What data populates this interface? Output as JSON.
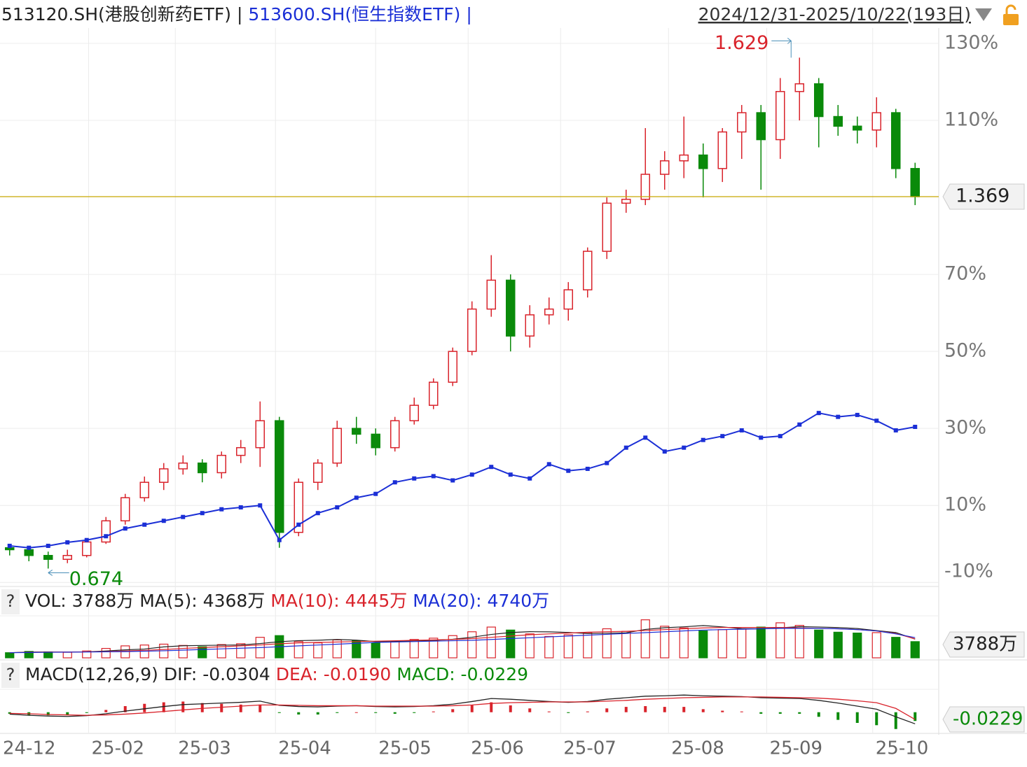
{
  "chart_data": [
    {
      "type": "candlestick",
      "range_label": "2024/12/31-2025/10/22(193日)",
      "separator": "|",
      "price_label": "1.369",
      "xlim": [
        0,
        48
      ],
      "xticks": [
        {
          "value": 0,
          "label": "24-12"
        },
        {
          "value": 4.6,
          "label": "25-02"
        },
        {
          "value": 9.1,
          "label": "25-03"
        },
        {
          "value": 14.3,
          "label": "25-04"
        },
        {
          "value": 19.5,
          "label": "25-05"
        },
        {
          "value": 24.3,
          "label": "25-06"
        },
        {
          "value": 29.1,
          "label": "25-07"
        },
        {
          "value": 34.7,
          "label": "25-08"
        },
        {
          "value": 39.8,
          "label": "25-09"
        },
        {
          "value": 45.3,
          "label": "25-10"
        }
      ],
      "ylim": [
        -10.5,
        134
      ],
      "yticks": [
        {
          "value": -10,
          "label": "-10%"
        },
        {
          "value": 10,
          "label": "10%"
        },
        {
          "value": 30,
          "label": "30%"
        },
        {
          "value": 50,
          "label": "50%"
        },
        {
          "value": 70,
          "label": "70%"
        },
        {
          "value": 110,
          "label": "110%"
        },
        {
          "value": 130,
          "label": "130%"
        }
      ],
      "grid": true,
      "high_label": "1.629",
      "low_label": "0.674",
      "series": [
        {
          "name": "513120.SH(港股创新药ETF)",
          "color": "#222222",
          "up_color": "#d9232b",
          "down_color": "#0a8a0a",
          "ohlc": [
            [
              -1,
              0,
              -3,
              -1.5
            ],
            [
              -1.5,
              -1,
              -4.5,
              -3
            ],
            [
              -3,
              -2,
              -6.4,
              -4
            ],
            [
              -4,
              -1.5,
              -5,
              -3
            ],
            [
              -3,
              1.5,
              -3.5,
              0.5
            ],
            [
              0.5,
              7,
              0,
              6
            ],
            [
              6,
              13,
              5,
              12
            ],
            [
              12,
              17.5,
              11,
              16
            ],
            [
              16,
              21,
              14,
              19.5
            ],
            [
              19.5,
              23,
              18,
              21
            ],
            [
              21,
              22,
              16,
              18.5
            ],
            [
              18.5,
              24,
              17,
              23
            ],
            [
              23,
              27,
              21,
              25
            ],
            [
              25,
              37,
              20,
              32
            ],
            [
              32,
              33,
              -1,
              3
            ],
            [
              3,
              17,
              2,
              16
            ],
            [
              16,
              22,
              14,
              21
            ],
            [
              21,
              32,
              20,
              30
            ],
            [
              30,
              33,
              26,
              28.5
            ],
            [
              28.5,
              30,
              23,
              25
            ],
            [
              25,
              33,
              24,
              32
            ],
            [
              32,
              38,
              31,
              36
            ],
            [
              36,
              43,
              35,
              42
            ],
            [
              42,
              51,
              41,
              50
            ],
            [
              50,
              63,
              49,
              61
            ],
            [
              61,
              75,
              59,
              68.5
            ],
            [
              68.5,
              70,
              50,
              54
            ],
            [
              54,
              62,
              51,
              59.5
            ],
            [
              59.5,
              64,
              57,
              61
            ],
            [
              61,
              68,
              58,
              66
            ],
            [
              66,
              77,
              64,
              76
            ],
            [
              76,
              90,
              74,
              88.5
            ],
            [
              88.5,
              92,
              86,
              89.5
            ],
            [
              89.5,
              108,
              88,
              96
            ],
            [
              96,
              102,
              92,
              99.5
            ],
            [
              99.5,
              111,
              95,
              101
            ],
            [
              101,
              104,
              90,
              97.5
            ],
            [
              97.5,
              108,
              94,
              107
            ],
            [
              107,
              114,
              100,
              112
            ],
            [
              112,
              114,
              92,
              105
            ],
            [
              105,
              121,
              100,
              117.5
            ],
            [
              117.5,
              126.3,
              110,
              119.5
            ],
            [
              119.5,
              121,
              103,
              111
            ],
            [
              111,
              114,
              106,
              108.5
            ],
            [
              108.5,
              111,
              104,
              107.5
            ],
            [
              107.5,
              116,
              103,
              112
            ],
            [
              112,
              113,
              95,
              97.5
            ],
            [
              97.5,
              99,
              88,
              90.2
            ]
          ]
        },
        {
          "name": "513600.SH(恒生指数ETF)",
          "color": "#1b2fd6",
          "values": [
            -0.5,
            -1,
            -0.5,
            0.4,
            1,
            2,
            4,
            5,
            6,
            7,
            8,
            9,
            9.5,
            10,
            1,
            5,
            8,
            9.5,
            12,
            13,
            16,
            17,
            17.6,
            16.5,
            18,
            20,
            18,
            17,
            20.7,
            19,
            19.5,
            21,
            25,
            27.6,
            24,
            25,
            27,
            28,
            29.5,
            27.6,
            28,
            31,
            34,
            33,
            33.5,
            32,
            29.5,
            30.4
          ]
        }
      ]
    },
    {
      "type": "bar",
      "help": "?",
      "last_label": "3788万",
      "ylim": [
        0,
        9500
      ],
      "series": [
        {
          "name": "VOL: 3788万",
          "values": [
            1200,
            1500,
            1400,
            1300,
            1600,
            2200,
            2800,
            3000,
            3200,
            2900,
            2600,
            3100,
            3300,
            4800,
            5200,
            3800,
            3500,
            4200,
            4000,
            3500,
            3900,
            4300,
            4600,
            5200,
            6100,
            7200,
            6500,
            5600,
            5000,
            5400,
            5900,
            6800,
            6200,
            8900,
            7400,
            7000,
            6300,
            6600,
            6800,
            7200,
            8200,
            7600,
            6500,
            6000,
            5800,
            5900,
            4800,
            3788
          ]
        },
        {
          "name": "MA(5): 4368万",
          "color": "#222222",
          "values": [
            1200,
            1350,
            1370,
            1350,
            1400,
            1600,
            1860,
            2060,
            2560,
            2820,
            2900,
            2960,
            3020,
            3340,
            3780,
            4020,
            4120,
            4300,
            4140,
            3800,
            3820,
            3980,
            4060,
            4340,
            4820,
            5480,
            5920,
            6120,
            6080,
            5940,
            5680,
            5740,
            5860,
            6640,
            7040,
            7260,
            7560,
            7240,
            6820,
            6780,
            7020,
            7300,
            7220,
            7080,
            6860,
            6380,
            5920,
            4368
          ]
        },
        {
          "name": "MA(10): 4445万",
          "color": "#d9232b",
          "values": [
            1200,
            1300,
            1350,
            1380,
            1400,
            1450,
            1600,
            1750,
            1950,
            2200,
            2400,
            2600,
            2800,
            3000,
            3300,
            3500,
            3600,
            3700,
            3800,
            3900,
            4000,
            4100,
            4200,
            4300,
            4500,
            4800,
            5100,
            5400,
            5600,
            5800,
            6000,
            6100,
            6200,
            6400,
            6600,
            6800,
            7000,
            7100,
            7100,
            7100,
            7100,
            7000,
            6900,
            6800,
            6600,
            6300,
            5700,
            4445
          ]
        },
        {
          "name": "MA(20): 4740万",
          "color": "#1b2fd6",
          "values": [
            1200,
            1250,
            1300,
            1330,
            1360,
            1400,
            1450,
            1550,
            1650,
            1800,
            1950,
            2100,
            2250,
            2400,
            2600,
            2800,
            3000,
            3200,
            3400,
            3600,
            3700,
            3800,
            3900,
            4000,
            4100,
            4300,
            4500,
            4700,
            4900,
            5100,
            5300,
            5500,
            5700,
            5900,
            6100,
            6300,
            6500,
            6600,
            6700,
            6800,
            6900,
            6900,
            6900,
            6800,
            6600,
            6300,
            5600,
            4740
          ]
        }
      ]
    },
    {
      "type": "macd",
      "help": "?",
      "title": "MACD(12,26,9)",
      "last_label": "-0.0229",
      "ylim": [
        -0.05,
        0.06
      ],
      "series": [
        {
          "name": "DIF: -0.0304",
          "color": "#222222",
          "values": [
            -0.005,
            -0.008,
            -0.01,
            -0.011,
            -0.009,
            -0.004,
            0.003,
            0.009,
            0.015,
            0.02,
            0.022,
            0.024,
            0.026,
            0.029,
            0.018,
            0.015,
            0.014,
            0.016,
            0.017,
            0.015,
            0.014,
            0.015,
            0.017,
            0.021,
            0.028,
            0.036,
            0.034,
            0.031,
            0.028,
            0.026,
            0.028,
            0.034,
            0.038,
            0.042,
            0.043,
            0.045,
            0.043,
            0.042,
            0.041,
            0.038,
            0.037,
            0.036,
            0.031,
            0.024,
            0.016,
            0.008,
            -0.012,
            -0.0304
          ]
        },
        {
          "name": "DEA: -0.0190",
          "color": "#d9232b",
          "values": [
            -0.003,
            -0.004,
            -0.006,
            -0.007,
            -0.008,
            -0.007,
            -0.005,
            -0.002,
            0.002,
            0.006,
            0.01,
            0.013,
            0.016,
            0.019,
            0.019,
            0.018,
            0.017,
            0.017,
            0.017,
            0.016,
            0.016,
            0.016,
            0.016,
            0.017,
            0.019,
            0.023,
            0.025,
            0.026,
            0.027,
            0.027,
            0.027,
            0.029,
            0.031,
            0.034,
            0.036,
            0.038,
            0.039,
            0.04,
            0.04,
            0.04,
            0.039,
            0.038,
            0.037,
            0.034,
            0.03,
            0.025,
            0.01,
            -0.019
          ]
        },
        {
          "name": "MACD: -0.0229",
          "color": "#0a8a0a",
          "up_color": "#d9232b",
          "values": [
            -0.004,
            -0.008,
            -0.008,
            -0.008,
            -0.002,
            0.006,
            0.016,
            0.022,
            0.026,
            0.028,
            0.024,
            0.022,
            0.02,
            0.02,
            -0.002,
            -0.006,
            -0.006,
            -0.002,
            0,
            -0.002,
            -0.004,
            -0.002,
            0.002,
            0.008,
            0.018,
            0.026,
            0.018,
            0.01,
            0.002,
            -0.002,
            0.002,
            0.01,
            0.014,
            0.016,
            0.014,
            0.014,
            0.008,
            0.004,
            0.002,
            -0.004,
            -0.004,
            -0.004,
            -0.012,
            -0.02,
            -0.028,
            -0.034,
            -0.044,
            -0.0229
          ]
        }
      ]
    }
  ]
}
